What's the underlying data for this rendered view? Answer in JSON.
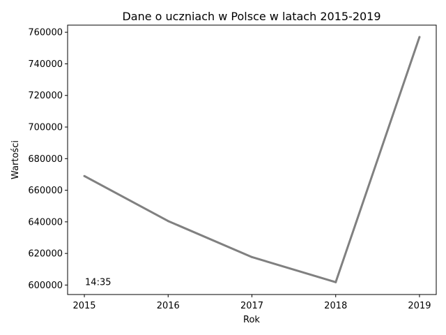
{
  "chart_data": {
    "type": "line",
    "title": "Dane o uczniach w Polsce w latach 2015-2019",
    "xlabel": "Rok",
    "ylabel": "Wartości",
    "x": [
      2015,
      2016,
      2017,
      2018,
      2019
    ],
    "x_tick_labels": [
      "2015",
      "2016",
      "2017",
      "2018",
      "2019"
    ],
    "y_ticks": [
      600000,
      620000,
      640000,
      660000,
      680000,
      700000,
      720000,
      740000,
      760000
    ],
    "y_tick_labels": [
      "600000",
      "620000",
      "640000",
      "660000",
      "680000",
      "700000",
      "720000",
      "740000",
      "760000"
    ],
    "ylim": [
      594000,
      764500
    ],
    "xlim": [
      2014.8,
      2019.2
    ],
    "grid": false,
    "series": [
      {
        "values": [
          669000,
          640500,
          617700,
          601800,
          757000
        ],
        "color": "#808080"
      }
    ],
    "annotations": [
      {
        "text": "14:35",
        "x": 2015,
        "y": 600000
      }
    ]
  }
}
